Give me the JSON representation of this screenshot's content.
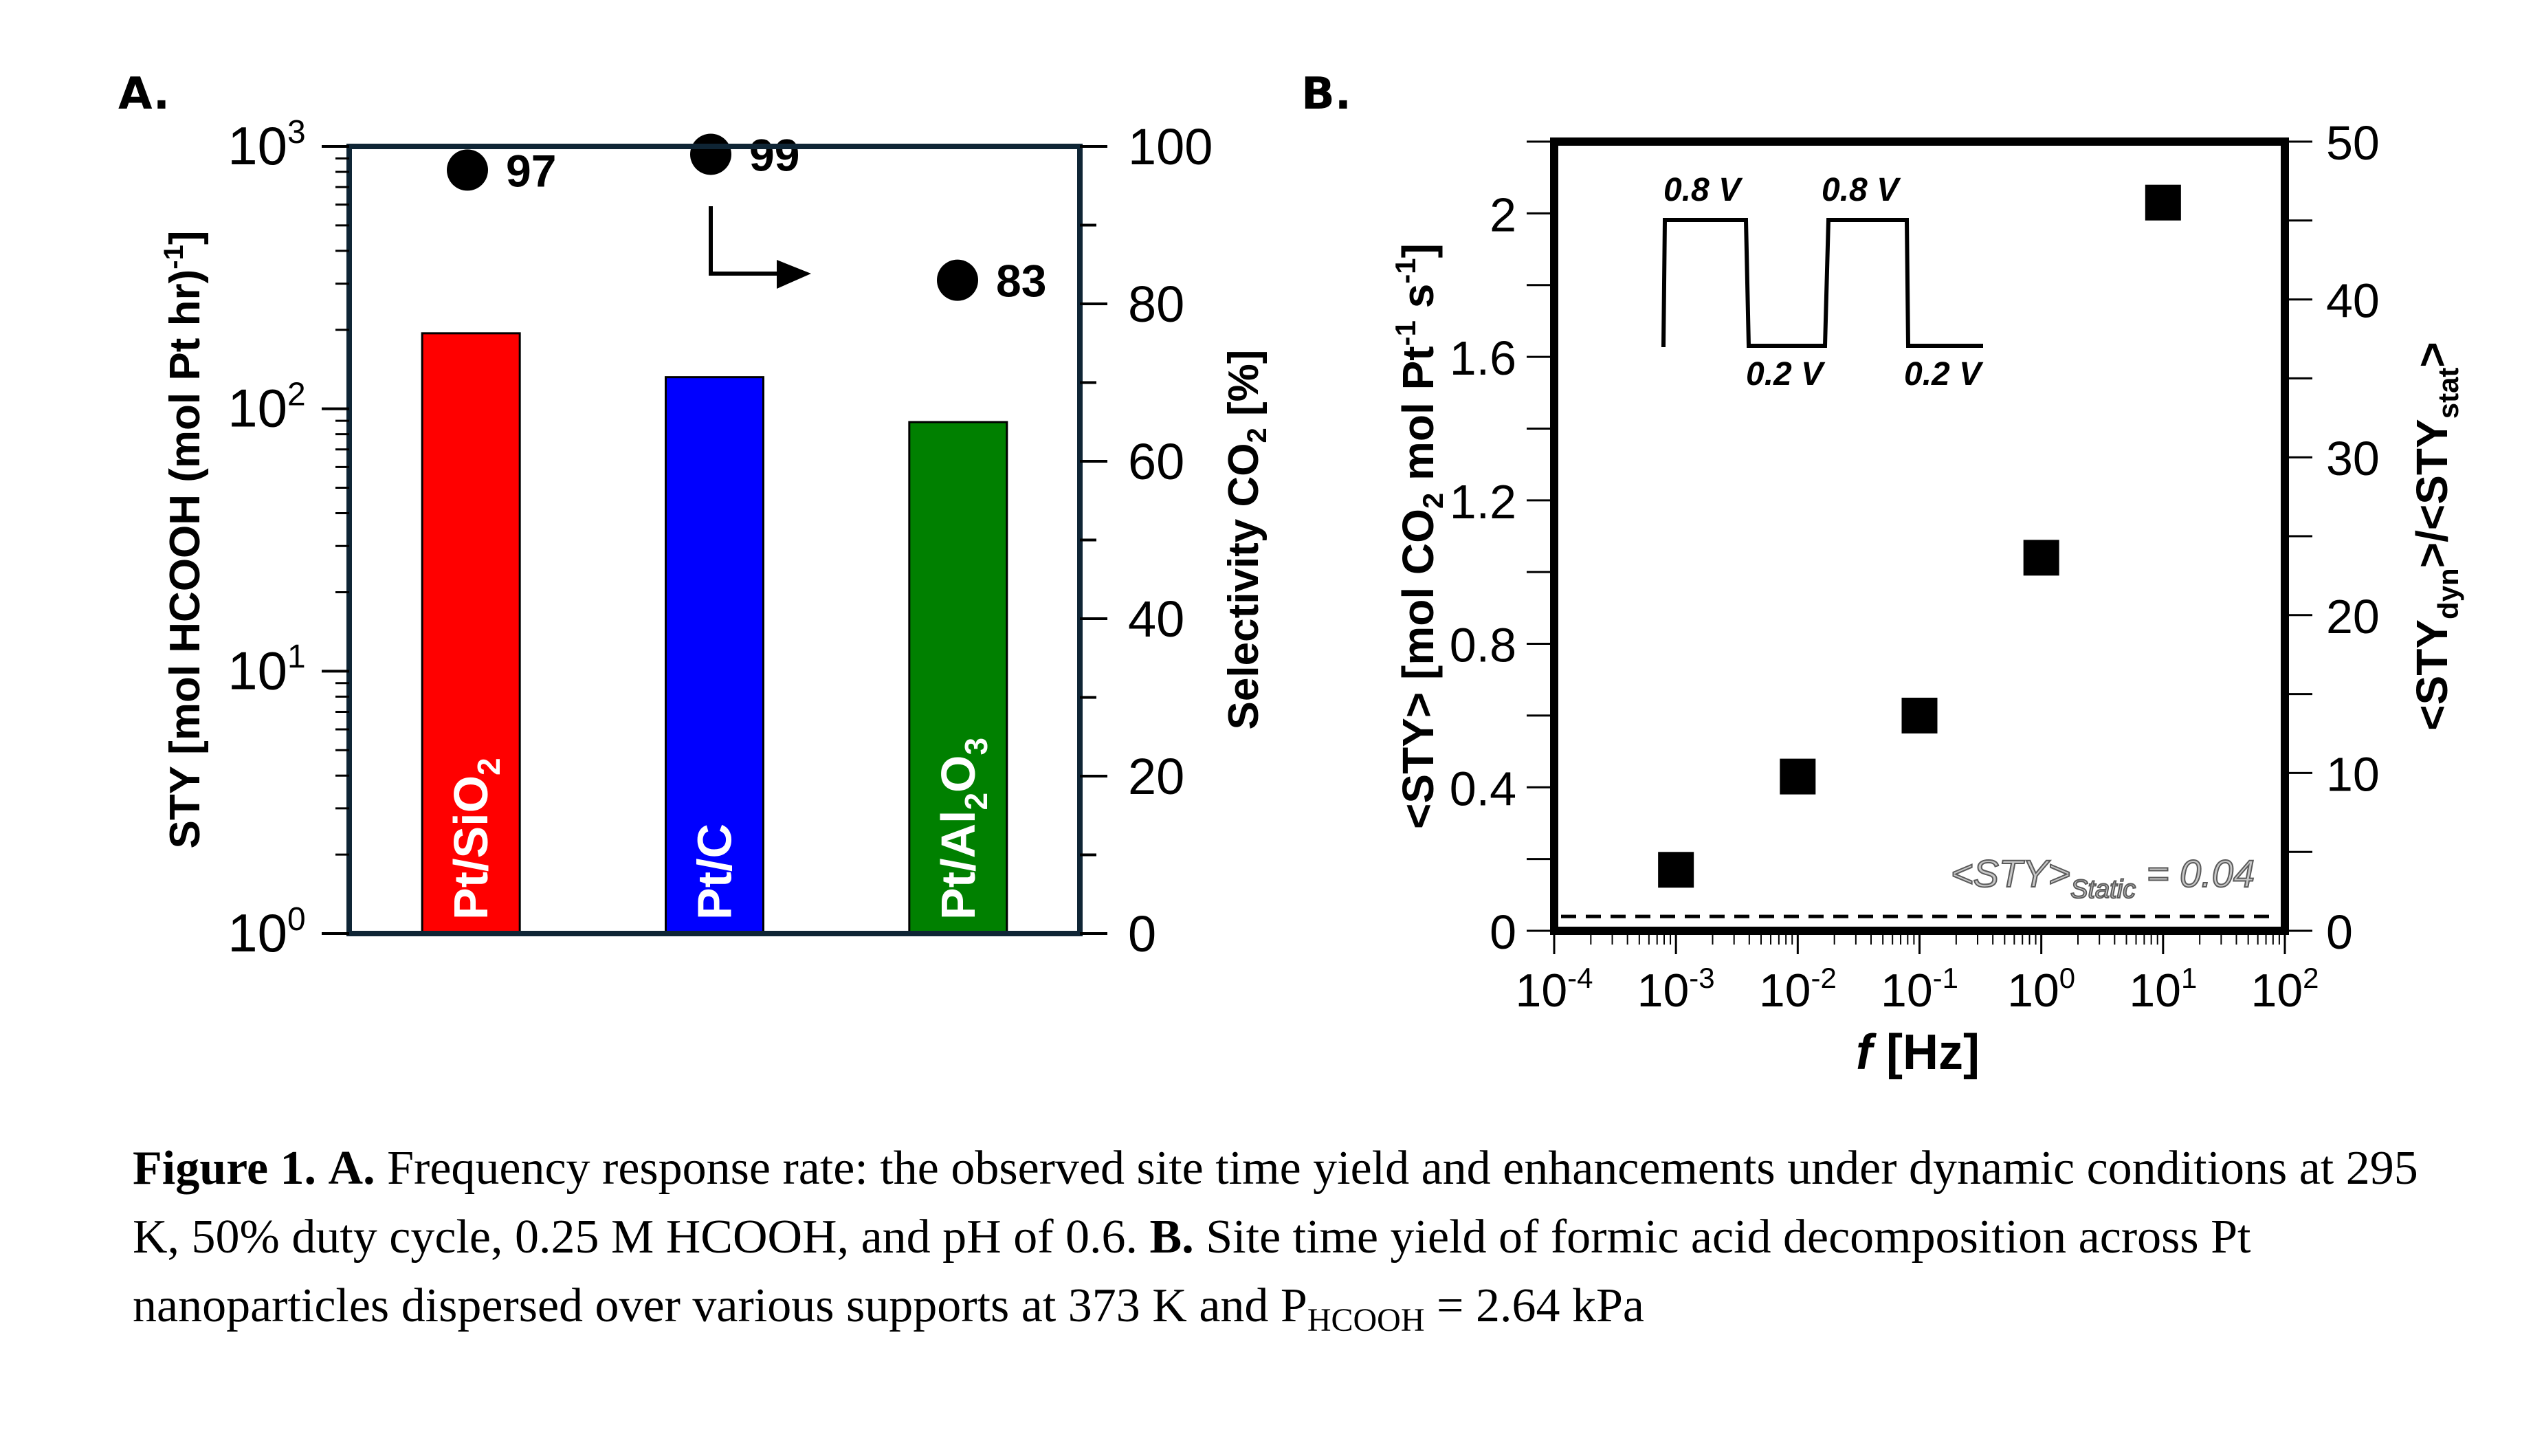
{
  "panel_labels": {
    "a": "A.",
    "b": "B."
  },
  "chart_data": [
    {
      "id": "A",
      "type": "bar",
      "title": "",
      "categories": [
        "Pt/SiO2",
        "Pt/C",
        "Pt/Al2O3"
      ],
      "category_labels": [
        {
          "main": "Pt/SiO",
          "sub": "2",
          "tail": ""
        },
        {
          "main": "Pt/C",
          "sub": "",
          "tail": ""
        },
        {
          "main": "Pt/Al",
          "sub": "2",
          "tail": "O",
          "sub2": "3"
        }
      ],
      "bar_colors": [
        "#ff0000",
        "#0000ff",
        "#008000"
      ],
      "values": [
        194,
        132,
        89
      ],
      "ylabel": "STY [mol HCOOH (mol Pt hr)",
      "ylabel_sup": "-1",
      "ylabel_tail": "]",
      "yscale": "log",
      "ylim": [
        1,
        1000
      ],
      "yticks": [
        {
          "base": "10",
          "exp": "0"
        },
        {
          "base": "10",
          "exp": "1"
        },
        {
          "base": "10",
          "exp": "2"
        },
        {
          "base": "10",
          "exp": "3"
        }
      ],
      "secondary_series": {
        "name": "Selectivity CO2",
        "marker": "circle",
        "values": [
          97,
          99,
          83
        ],
        "data_labels": [
          "97",
          "99",
          "83"
        ]
      },
      "y2label": "Selectivity CO",
      "y2label_sub": "2",
      "y2label_tail": " [%]",
      "y2lim": [
        0,
        100
      ],
      "y2ticks": [
        "0",
        "20",
        "40",
        "60",
        "80",
        "100"
      ],
      "annotation": "arrow pointing to right axis",
      "frame_color": "#0f2535"
    },
    {
      "id": "B",
      "type": "scatter",
      "title": "",
      "x": [
        0.001,
        0.01,
        0.1,
        1,
        10
      ],
      "y": [
        0.17,
        0.43,
        0.6,
        1.04,
        2.03
      ],
      "marker": "square",
      "xscale": "log",
      "xlim": [
        0.0001,
        100
      ],
      "xticks": [
        {
          "base": "10",
          "exp": "-4"
        },
        {
          "base": "10",
          "exp": "-3"
        },
        {
          "base": "10",
          "exp": "-2"
        },
        {
          "base": "10",
          "exp": "-1"
        },
        {
          "base": "10",
          "exp": "0"
        },
        {
          "base": "10",
          "exp": "1"
        },
        {
          "base": "10",
          "exp": "2"
        }
      ],
      "xlabel_italic": "f",
      "xlabel": " [Hz]",
      "ylim": [
        0,
        2.2
      ],
      "yticks": [
        "0",
        "0.4",
        "0.8",
        "1.2",
        "1.6",
        "2"
      ],
      "ylabel_parts": {
        "a": "<STY> [mol CO",
        "sub": "2",
        "b": " mol Pt",
        "sup": "-1",
        "c": " s",
        "sup2": "-1",
        "d": "]"
      },
      "y2lim": [
        0,
        50
      ],
      "y2ticks": [
        "0",
        "10",
        "20",
        "30",
        "40",
        "50"
      ],
      "y2label_parts": {
        "a": "<STY",
        "sub": "dyn",
        "b": ">/<STY",
        "sub2": "stat",
        "c": ">"
      },
      "static_line": {
        "value": 0.04,
        "style": "dashed"
      },
      "static_label": {
        "main": "<STY>",
        "sub": "Static",
        "tail": " = 0.04"
      },
      "inset_waveform": {
        "high_label": "0.8 V",
        "low_label": "0.2 V",
        "cycles": 2
      }
    }
  ],
  "caption": {
    "fig_label": "Figure 1.",
    "a_label": "A.",
    "a_text": " Frequency response rate: the observed site time yield and enhancements under dynamic conditions at 295 K, 50% duty cycle, 0.25 M HCOOH, and pH of 0.6. ",
    "b_label": "B.",
    "b_text": " Site time yield of formic acid decomposition across Pt nanoparticles dispersed over various supports at 373 K and P",
    "b_sub": "HCOOH",
    "b_tail": " = 2.64 kPa"
  }
}
